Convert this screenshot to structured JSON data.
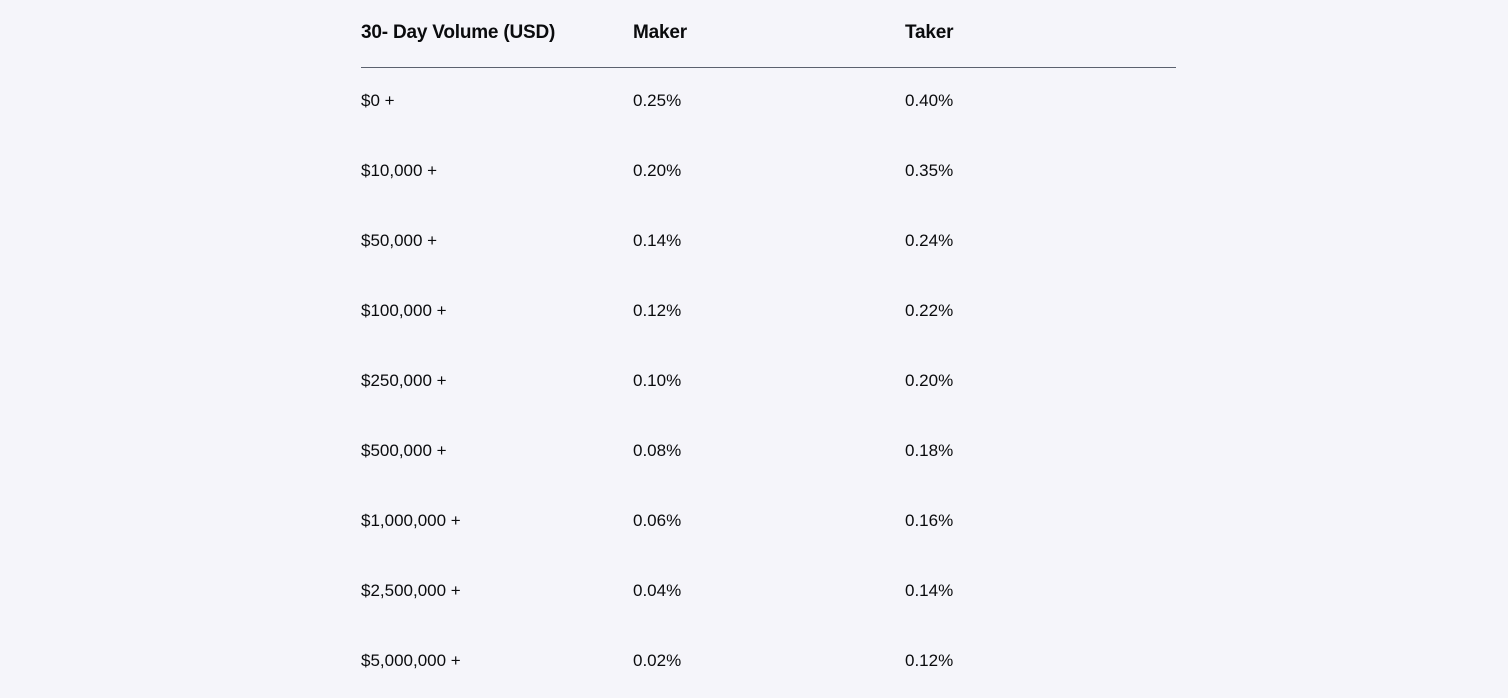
{
  "fee_table": {
    "headers": [
      "30- Day Volume (USD)",
      "Maker",
      "Taker"
    ],
    "rows": [
      {
        "volume": "$0 +",
        "maker": "0.25%",
        "taker": "0.40%"
      },
      {
        "volume": "$10,000 +",
        "maker": "0.20%",
        "taker": "0.35%"
      },
      {
        "volume": "$50,000 +",
        "maker": "0.14%",
        "taker": "0.24%"
      },
      {
        "volume": "$100,000 +",
        "maker": "0.12%",
        "taker": "0.22%"
      },
      {
        "volume": "$250,000 +",
        "maker": "0.10%",
        "taker": "0.20%"
      },
      {
        "volume": "$500,000 +",
        "maker": "0.08%",
        "taker": "0.18%"
      },
      {
        "volume": "$1,000,000 +",
        "maker": "0.06%",
        "taker": "0.16%"
      },
      {
        "volume": "$2,500,000 +",
        "maker": "0.04%",
        "taker": "0.14%"
      },
      {
        "volume": "$5,000,000 +",
        "maker": "0.02%",
        "taker": "0.12%"
      }
    ]
  },
  "colors": {
    "background": "#f5f5fa",
    "text": "#0a0b0d",
    "divider": "#5b616e"
  }
}
